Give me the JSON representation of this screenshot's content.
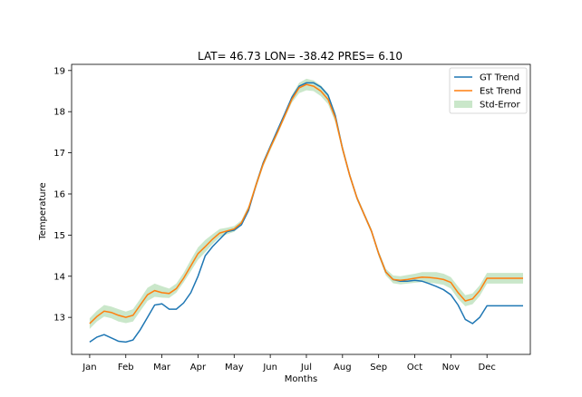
{
  "chart_data": {
    "type": "line",
    "title": "LAT= 46.73 LON= -38.42 PRES= 6.10",
    "xlabel": "Months",
    "ylabel": "Temperature",
    "xlim": [
      -0.5,
      12.2
    ],
    "ylim": [
      12.1,
      19.15
    ],
    "categories": [
      "Jan",
      "Feb",
      "Mar",
      "Apr",
      "May",
      "Jun",
      "Jul",
      "Aug",
      "Sep",
      "Oct",
      "Nov",
      "Dec"
    ],
    "yticks": [
      13,
      14,
      15,
      16,
      17,
      18,
      19
    ],
    "x": [
      0,
      0.2,
      0.4,
      0.6,
      0.8,
      1.0,
      1.2,
      1.4,
      1.6,
      1.8,
      2.0,
      2.2,
      2.4,
      2.6,
      2.8,
      3.0,
      3.2,
      3.4,
      3.6,
      3.8,
      4.0,
      4.2,
      4.4,
      4.6,
      4.8,
      5.0,
      5.2,
      5.4,
      5.6,
      5.8,
      6.0,
      6.2,
      6.4,
      6.6,
      6.8,
      7.0,
      7.2,
      7.4,
      7.6,
      7.8,
      8.0,
      8.2,
      8.4,
      8.6,
      8.8,
      9.0,
      9.2,
      9.4,
      9.6,
      9.8,
      10.0,
      10.2,
      10.4,
      10.6,
      10.8,
      11.0,
      11.2,
      11.4,
      11.6,
      11.8,
      12.0
    ],
    "series": [
      {
        "name": "GT Trend",
        "color": "#1f77b4",
        "values": [
          12.4,
          12.52,
          12.58,
          12.5,
          12.42,
          12.4,
          12.45,
          12.7,
          13.0,
          13.3,
          13.33,
          13.2,
          13.2,
          13.35,
          13.6,
          14.0,
          14.5,
          14.72,
          14.9,
          15.08,
          15.12,
          15.25,
          15.6,
          16.2,
          16.75,
          17.15,
          17.55,
          17.95,
          18.35,
          18.62,
          18.7,
          18.7,
          18.6,
          18.4,
          17.9,
          17.1,
          16.45,
          15.9,
          15.5,
          15.1,
          14.55,
          14.1,
          13.92,
          13.88,
          13.88,
          13.9,
          13.88,
          13.82,
          13.75,
          13.67,
          13.55,
          13.3,
          12.95,
          12.85,
          13.0,
          13.28,
          13.28,
          13.28,
          13.28,
          13.28,
          13.28
        ]
      },
      {
        "name": "Est Trend",
        "color": "#ff7f0e",
        "values": [
          12.85,
          13.02,
          13.15,
          13.12,
          13.05,
          13.0,
          13.05,
          13.3,
          13.55,
          13.65,
          13.6,
          13.58,
          13.7,
          13.95,
          14.25,
          14.55,
          14.72,
          14.9,
          15.05,
          15.1,
          15.15,
          15.3,
          15.65,
          16.2,
          16.72,
          17.12,
          17.5,
          17.9,
          18.3,
          18.58,
          18.66,
          18.62,
          18.5,
          18.3,
          17.85,
          17.1,
          16.45,
          15.9,
          15.5,
          15.1,
          14.55,
          14.1,
          13.92,
          13.9,
          13.92,
          13.95,
          13.98,
          13.97,
          13.95,
          13.92,
          13.85,
          13.6,
          13.4,
          13.45,
          13.65,
          13.95,
          13.95,
          13.95,
          13.95,
          13.95,
          13.95
        ]
      }
    ],
    "band": {
      "name": "Std-Error",
      "color": "#2ca02c",
      "opacity": 0.25,
      "lower": [
        12.72,
        12.9,
        13.02,
        12.98,
        12.9,
        12.86,
        12.9,
        13.15,
        13.4,
        13.5,
        13.48,
        13.47,
        13.6,
        13.85,
        14.12,
        14.4,
        14.58,
        14.78,
        14.95,
        15.02,
        15.08,
        15.24,
        15.58,
        16.12,
        16.65,
        17.05,
        17.44,
        17.84,
        18.22,
        18.45,
        18.52,
        18.5,
        18.38,
        18.18,
        17.74,
        17.02,
        16.38,
        15.84,
        15.45,
        15.04,
        14.48,
        14.02,
        13.83,
        13.8,
        13.82,
        13.84,
        13.86,
        13.84,
        13.82,
        13.79,
        13.7,
        13.45,
        13.27,
        13.32,
        13.52,
        13.82,
        13.82,
        13.82,
        13.82,
        13.82,
        13.82
      ],
      "upper": [
        12.98,
        13.16,
        13.3,
        13.26,
        13.2,
        13.14,
        13.2,
        13.45,
        13.72,
        13.82,
        13.76,
        13.7,
        13.82,
        14.08,
        14.4,
        14.7,
        14.88,
        15.02,
        15.15,
        15.18,
        15.22,
        15.36,
        15.72,
        16.28,
        16.8,
        17.2,
        17.58,
        17.98,
        18.4,
        18.7,
        18.8,
        18.76,
        18.64,
        18.44,
        17.98,
        17.2,
        16.52,
        15.96,
        15.56,
        15.16,
        14.62,
        14.18,
        14.02,
        14.0,
        14.03,
        14.06,
        14.1,
        14.1,
        14.1,
        14.06,
        13.98,
        13.75,
        13.54,
        13.58,
        13.78,
        14.08,
        14.08,
        14.08,
        14.08,
        14.08,
        14.08
      ]
    },
    "legend_position": "top-right",
    "grid": false
  }
}
